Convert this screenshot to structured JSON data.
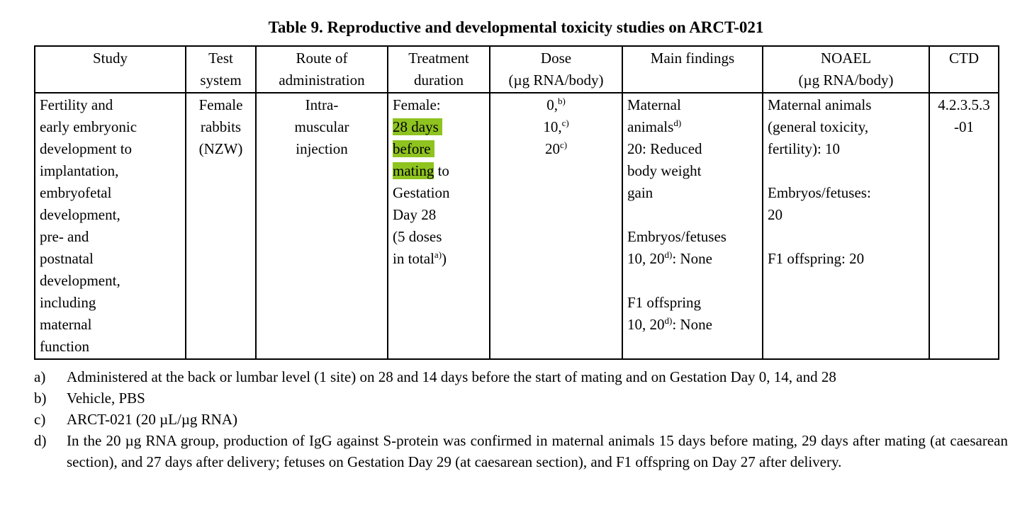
{
  "title": "Table 9. Reproductive and developmental toxicity studies on ARCT-021",
  "colors": {
    "highlight": "#8fc31f"
  },
  "table": {
    "headers": [
      {
        "segs": [
          {
            "t": "Study"
          }
        ]
      },
      {
        "segs": [
          {
            "t": "Test"
          },
          {
            "br": true
          },
          {
            "t": "system"
          }
        ]
      },
      {
        "segs": [
          {
            "t": "Route of"
          },
          {
            "br": true
          },
          {
            "t": "administration"
          }
        ]
      },
      {
        "segs": [
          {
            "t": "Treatment"
          },
          {
            "br": true
          },
          {
            "t": "duration"
          }
        ]
      },
      {
        "segs": [
          {
            "t": "Dose"
          },
          {
            "br": true
          },
          {
            "t": "(µg RNA/body)"
          }
        ]
      },
      {
        "segs": [
          {
            "t": "Main findings"
          }
        ]
      },
      {
        "segs": [
          {
            "t": "NOAEL"
          },
          {
            "br": true
          },
          {
            "t": "(µg RNA/body)"
          }
        ]
      },
      {
        "segs": [
          {
            "t": "CTD"
          }
        ]
      }
    ],
    "row": {
      "study": [
        {
          "t": "Fertility and"
        },
        {
          "br": true
        },
        {
          "t": "early embryonic"
        },
        {
          "br": true
        },
        {
          "t": "development to"
        },
        {
          "br": true
        },
        {
          "t": "implantation,"
        },
        {
          "br": true
        },
        {
          "t": "embryofetal"
        },
        {
          "br": true
        },
        {
          "t": "development,"
        },
        {
          "br": true
        },
        {
          "t": "pre- and"
        },
        {
          "br": true
        },
        {
          "t": "postnatal"
        },
        {
          "br": true
        },
        {
          "t": "development,"
        },
        {
          "br": true
        },
        {
          "t": "including"
        },
        {
          "br": true
        },
        {
          "t": "maternal"
        },
        {
          "br": true
        },
        {
          "t": "function"
        }
      ],
      "test_system": [
        {
          "t": "Female"
        },
        {
          "br": true
        },
        {
          "t": "rabbits"
        },
        {
          "br": true
        },
        {
          "t": "(NZW)"
        }
      ],
      "route": [
        {
          "t": "Intra-"
        },
        {
          "br": true
        },
        {
          "t": "muscular"
        },
        {
          "br": true
        },
        {
          "t": "injection"
        }
      ],
      "treatment": [
        {
          "t": "Female:"
        },
        {
          "br": true
        },
        {
          "t": "28 days ",
          "hl": true
        },
        {
          "br": true
        },
        {
          "t": "before ",
          "hl": true
        },
        {
          "br": true
        },
        {
          "t": "mating",
          "hl": true
        },
        {
          "t": " to"
        },
        {
          "br": true
        },
        {
          "t": "Gestation"
        },
        {
          "br": true
        },
        {
          "t": "Day 28"
        },
        {
          "br": true
        },
        {
          "t": "(5 doses"
        },
        {
          "br": true
        },
        {
          "t": "in total"
        },
        {
          "sup": "a)"
        },
        {
          "t": ")"
        }
      ],
      "dose": [
        {
          "t": "0,"
        },
        {
          "sup": "b)"
        },
        {
          "br": true
        },
        {
          "t": "10,"
        },
        {
          "sup": "c)"
        },
        {
          "br": true
        },
        {
          "t": "20"
        },
        {
          "sup": "c)"
        }
      ],
      "main_findings": [
        {
          "t": "Maternal"
        },
        {
          "br": true
        },
        {
          "t": "animals"
        },
        {
          "sup": "d)"
        },
        {
          "br": true
        },
        {
          "t": "20: Reduced"
        },
        {
          "br": true
        },
        {
          "t": "body weight"
        },
        {
          "br": true
        },
        {
          "t": "gain"
        },
        {
          "br": true
        },
        {
          "br": true
        },
        {
          "t": "Embryos/fetuses"
        },
        {
          "br": true
        },
        {
          "t": "10, 20"
        },
        {
          "sup": "d)"
        },
        {
          "t": ": None"
        },
        {
          "br": true
        },
        {
          "br": true
        },
        {
          "t": "F1 offspring"
        },
        {
          "br": true
        },
        {
          "t": "10, 20"
        },
        {
          "sup": "d)"
        },
        {
          "t": ": None"
        }
      ],
      "noael": [
        {
          "t": "Maternal animals"
        },
        {
          "br": true
        },
        {
          "t": "(general toxicity,"
        },
        {
          "br": true
        },
        {
          "t": "fertility): 10"
        },
        {
          "br": true
        },
        {
          "br": true
        },
        {
          "t": "Embryos/fetuses:"
        },
        {
          "br": true
        },
        {
          "t": "20"
        },
        {
          "br": true
        },
        {
          "br": true
        },
        {
          "t": "F1 offspring: 20"
        }
      ],
      "ctd": [
        {
          "t": "4.2.3.5.3"
        },
        {
          "br": true
        },
        {
          "t": "-01"
        }
      ]
    }
  },
  "footnotes": [
    {
      "label": "a)",
      "text": "Administered at the back or lumbar level (1 site) on 28 and 14 days before the start of mating and on Gestation Day 0, 14, and 28"
    },
    {
      "label": "b)",
      "text": "Vehicle, PBS"
    },
    {
      "label": "c)",
      "text": "ARCT-021 (20 µL/µg RNA)"
    },
    {
      "label": "d)",
      "text": "In the 20 µg RNA group, production of IgG against S-protein was confirmed in maternal animals 15 days before mating, 29 days after mating (at caesarean section), and 27 days after delivery; fetuses on Gestation Day 29 (at caesarean section), and F1 offspring on Day 27 after delivery."
    }
  ]
}
